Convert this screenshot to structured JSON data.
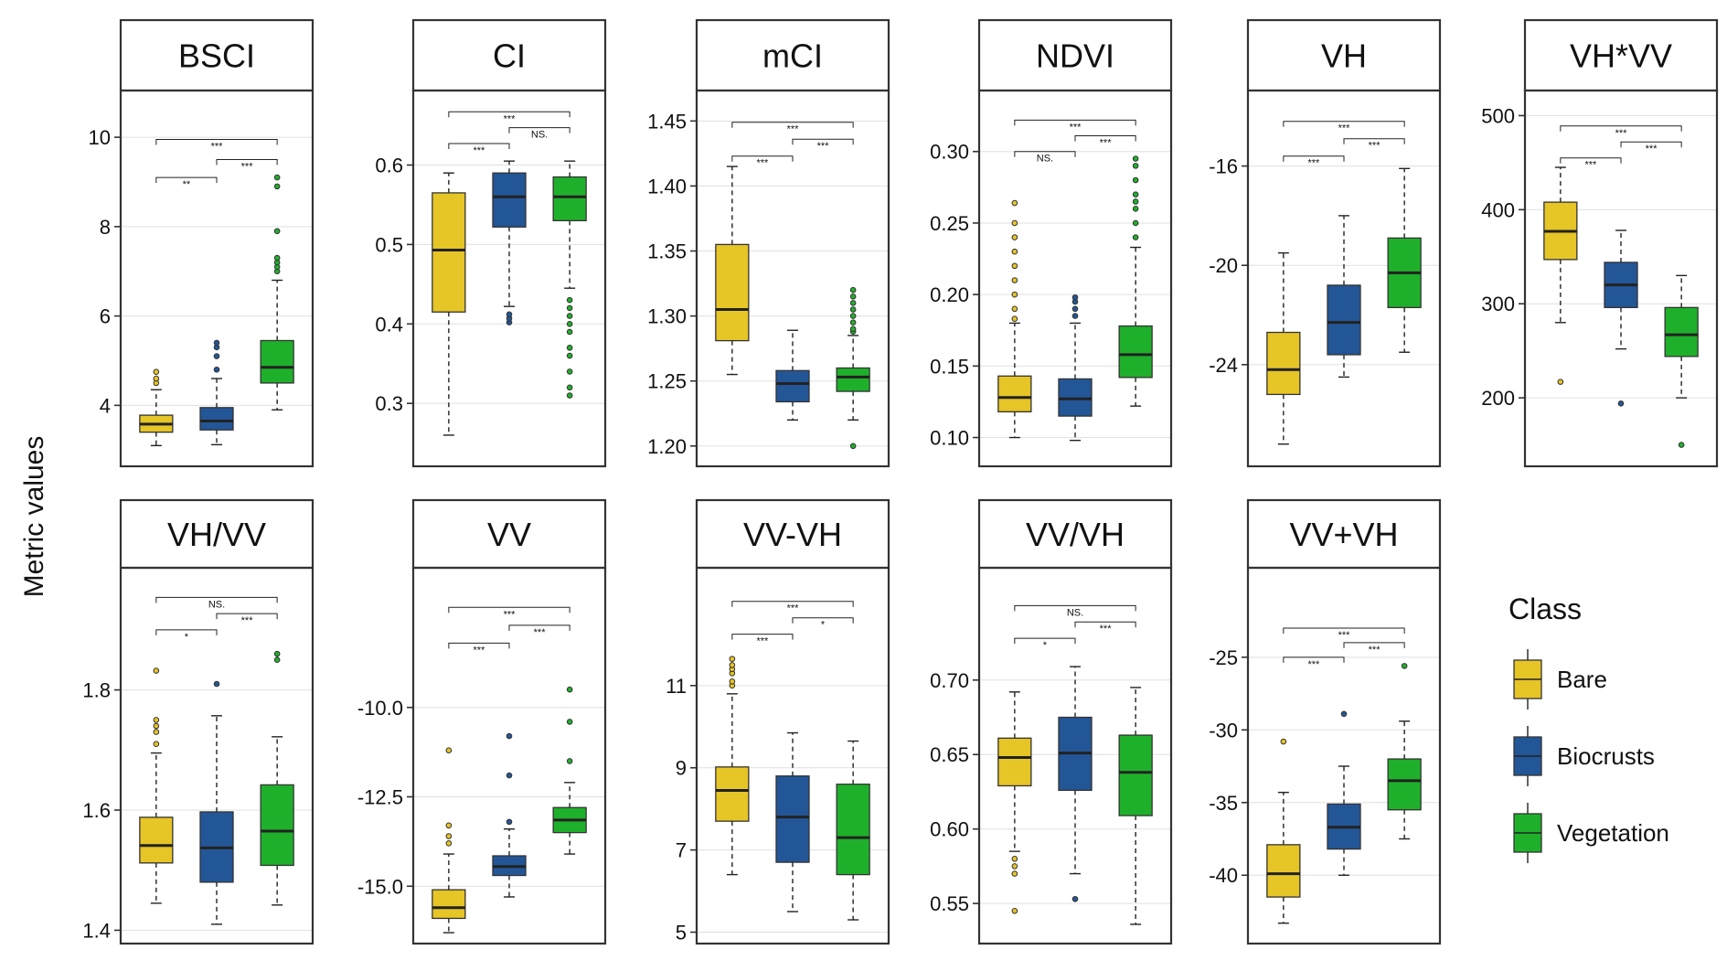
{
  "y_axis_label": "Metric values",
  "legend": {
    "title": "Class",
    "items": [
      {
        "label": "Bare",
        "color": "#e6c526"
      },
      {
        "label": "Biocrusts",
        "color": "#235697"
      },
      {
        "label": "Vegetation",
        "color": "#1fb02b"
      }
    ]
  },
  "colors": {
    "frame": "#333333",
    "strip_bg": "#ffffff",
    "grid": "#e0e0e0",
    "median": "#222222"
  },
  "chart_data": [
    {
      "type": "box",
      "title": "BSCI",
      "ylim": [
        2.8,
        10.8
      ],
      "ticks": [
        4,
        6,
        8,
        10
      ],
      "tick_labels": [
        "4",
        "6",
        "8",
        "10"
      ],
      "series": [
        {
          "name": "Bare",
          "q1": 3.4,
          "median": 3.58,
          "q3": 3.78,
          "whisker_low": 3.1,
          "whisker_high": 4.35,
          "outliers": [
            4.5,
            4.6,
            4.75
          ]
        },
        {
          "name": "Biocrusts",
          "q1": 3.45,
          "median": 3.65,
          "q3": 3.95,
          "whisker_low": 3.12,
          "whisker_high": 4.6,
          "outliers": [
            4.8,
            5.1,
            5.3,
            5.4
          ]
        },
        {
          "name": "Vegetation",
          "q1": 4.5,
          "median": 4.85,
          "q3": 5.45,
          "whisker_low": 3.9,
          "whisker_high": 6.8,
          "outliers": [
            7.0,
            7.1,
            7.2,
            7.3,
            7.9,
            8.9,
            9.1
          ]
        }
      ],
      "comparisons": [
        {
          "label": "**",
          "from": 0,
          "to": 1,
          "y": 9.1
        },
        {
          "label": "***",
          "from": 1,
          "to": 2,
          "y": 9.5
        },
        {
          "label": "***",
          "from": 0,
          "to": 2,
          "y": 9.95
        }
      ]
    },
    {
      "type": "box",
      "title": "CI",
      "ylim": [
        0.23,
        0.68
      ],
      "ticks": [
        0.3,
        0.4,
        0.5,
        0.6
      ],
      "tick_labels": [
        "0.3",
        "0.4",
        "0.5",
        "0.6"
      ],
      "series": [
        {
          "name": "Bare",
          "q1": 0.415,
          "median": 0.493,
          "q3": 0.565,
          "whisker_low": 0.26,
          "whisker_high": 0.59,
          "outliers": []
        },
        {
          "name": "Biocrusts",
          "q1": 0.522,
          "median": 0.56,
          "q3": 0.59,
          "whisker_low": 0.422,
          "whisker_high": 0.605,
          "outliers": [
            0.402,
            0.407,
            0.412
          ]
        },
        {
          "name": "Vegetation",
          "q1": 0.53,
          "median": 0.56,
          "q3": 0.585,
          "whisker_low": 0.445,
          "whisker_high": 0.605,
          "outliers": [
            0.31,
            0.32,
            0.34,
            0.36,
            0.37,
            0.39,
            0.4,
            0.41,
            0.42,
            0.43
          ]
        }
      ],
      "comparisons": [
        {
          "label": "***",
          "from": 0,
          "to": 1,
          "y": 0.627
        },
        {
          "label": "NS.",
          "from": 1,
          "to": 2,
          "y": 0.647
        },
        {
          "label": "***",
          "from": 0,
          "to": 2,
          "y": 0.667
        }
      ]
    },
    {
      "type": "box",
      "title": "mCI",
      "ylim": [
        1.19,
        1.465
      ],
      "ticks": [
        1.2,
        1.25,
        1.3,
        1.35,
        1.4,
        1.45
      ],
      "tick_labels": [
        "1.20",
        "1.25",
        "1.30",
        "1.35",
        "1.40",
        "1.45"
      ],
      "series": [
        {
          "name": "Bare",
          "q1": 1.281,
          "median": 1.305,
          "q3": 1.355,
          "whisker_low": 1.255,
          "whisker_high": 1.415,
          "outliers": []
        },
        {
          "name": "Biocrusts",
          "q1": 1.234,
          "median": 1.248,
          "q3": 1.258,
          "whisker_low": 1.22,
          "whisker_high": 1.289,
          "outliers": []
        },
        {
          "name": "Vegetation",
          "q1": 1.242,
          "median": 1.253,
          "q3": 1.26,
          "whisker_low": 1.22,
          "whisker_high": 1.285,
          "outliers": [
            1.2,
            1.288,
            1.29,
            1.295,
            1.3,
            1.305,
            1.31,
            1.315,
            1.32
          ]
        }
      ],
      "comparisons": [
        {
          "label": "***",
          "from": 0,
          "to": 1,
          "y": 1.423
        },
        {
          "label": "***",
          "from": 1,
          "to": 2,
          "y": 1.436
        },
        {
          "label": "***",
          "from": 0,
          "to": 2,
          "y": 1.449
        }
      ]
    },
    {
      "type": "box",
      "title": "NDVI",
      "ylim": [
        0.085,
        0.335
      ],
      "ticks": [
        0.1,
        0.15,
        0.2,
        0.25,
        0.3
      ],
      "tick_labels": [
        "0.10",
        "0.15",
        "0.20",
        "0.25",
        "0.30"
      ],
      "series": [
        {
          "name": "Bare",
          "q1": 0.118,
          "median": 0.128,
          "q3": 0.143,
          "whisker_low": 0.1,
          "whisker_high": 0.18,
          "outliers": [
            0.183,
            0.19,
            0.2,
            0.21,
            0.22,
            0.23,
            0.24,
            0.25,
            0.264
          ]
        },
        {
          "name": "Biocrusts",
          "q1": 0.115,
          "median": 0.127,
          "q3": 0.141,
          "whisker_low": 0.098,
          "whisker_high": 0.18,
          "outliers": [
            0.185,
            0.19,
            0.195,
            0.198
          ]
        },
        {
          "name": "Vegetation",
          "q1": 0.142,
          "median": 0.158,
          "q3": 0.178,
          "whisker_low": 0.122,
          "whisker_high": 0.233,
          "outliers": [
            0.24,
            0.25,
            0.26,
            0.265,
            0.27,
            0.28,
            0.29,
            0.295
          ]
        }
      ],
      "comparisons": [
        {
          "label": "NS.",
          "from": 0,
          "to": 1,
          "y": 0.3
        },
        {
          "label": "***",
          "from": 1,
          "to": 2,
          "y": 0.311
        },
        {
          "label": "***",
          "from": 0,
          "to": 2,
          "y": 0.322
        }
      ]
    },
    {
      "type": "box",
      "title": "VH",
      "ylim": [
        -27.8,
        -13.4
      ],
      "ticks": [
        -24,
        -20,
        -16
      ],
      "tick_labels": [
        "-24",
        "-20",
        "-16"
      ],
      "series": [
        {
          "name": "Bare",
          "q1": -25.2,
          "median": -24.2,
          "q3": -22.7,
          "whisker_low": -27.2,
          "whisker_high": -19.5,
          "outliers": []
        },
        {
          "name": "Biocrusts",
          "q1": -23.6,
          "median": -22.3,
          "q3": -20.8,
          "whisker_low": -24.5,
          "whisker_high": -18.0,
          "outliers": []
        },
        {
          "name": "Vegetation",
          "q1": -21.7,
          "median": -20.3,
          "q3": -18.9,
          "whisker_low": -23.5,
          "whisker_high": -16.1,
          "outliers": []
        }
      ],
      "comparisons": [
        {
          "label": "***",
          "from": 0,
          "to": 1,
          "y": -15.6
        },
        {
          "label": "***",
          "from": 1,
          "to": 2,
          "y": -14.9
        },
        {
          "label": "***",
          "from": 0,
          "to": 2,
          "y": -14.2
        }
      ]
    },
    {
      "type": "box",
      "title": "VH*VV",
      "ylim": [
        135,
        515
      ],
      "ticks": [
        200,
        300,
        400,
        500
      ],
      "tick_labels": [
        "200",
        "300",
        "400",
        "500"
      ],
      "series": [
        {
          "name": "Bare",
          "q1": 347,
          "median": 377,
          "q3": 408,
          "whisker_low": 280,
          "whisker_high": 445,
          "outliers": [
            217
          ]
        },
        {
          "name": "Biocrusts",
          "q1": 296,
          "median": 320,
          "q3": 344,
          "whisker_low": 252,
          "whisker_high": 378,
          "outliers": [
            194
          ]
        },
        {
          "name": "Vegetation",
          "q1": 244,
          "median": 267,
          "q3": 296,
          "whisker_low": 200,
          "whisker_high": 330,
          "outliers": [
            150
          ]
        }
      ],
      "comparisons": [
        {
          "label": "***",
          "from": 0,
          "to": 1,
          "y": 455
        },
        {
          "label": "***",
          "from": 1,
          "to": 2,
          "y": 472
        },
        {
          "label": "***",
          "from": 0,
          "to": 2,
          "y": 489
        }
      ]
    },
    {
      "type": "box",
      "title": "VH/VV",
      "ylim": [
        1.39,
        1.985
      ],
      "ticks": [
        1.4,
        1.6,
        1.8
      ],
      "tick_labels": [
        "1.4",
        "1.6",
        "1.8"
      ],
      "series": [
        {
          "name": "Bare",
          "q1": 1.512,
          "median": 1.541,
          "q3": 1.588,
          "whisker_low": 1.445,
          "whisker_high": 1.695,
          "outliers": [
            1.71,
            1.73,
            1.74,
            1.75,
            1.832
          ]
        },
        {
          "name": "Biocrusts",
          "q1": 1.48,
          "median": 1.537,
          "q3": 1.597,
          "whisker_low": 1.41,
          "whisker_high": 1.757,
          "outliers": [
            1.81
          ]
        },
        {
          "name": "Vegetation",
          "q1": 1.508,
          "median": 1.565,
          "q3": 1.642,
          "whisker_low": 1.442,
          "whisker_high": 1.722,
          "outliers": [
            1.85,
            1.86
          ]
        }
      ],
      "comparisons": [
        {
          "label": "*",
          "from": 0,
          "to": 1,
          "y": 1.9
        },
        {
          "label": "***",
          "from": 1,
          "to": 2,
          "y": 1.927
        },
        {
          "label": "NS.",
          "from": 0,
          "to": 2,
          "y": 1.954
        }
      ]
    },
    {
      "type": "box",
      "title": "VV",
      "ylim": [
        -16.4,
        -6.4
      ],
      "ticks": [
        -15,
        -12.5,
        -10
      ],
      "tick_labels": [
        "-15.0",
        "-12.5",
        "-10.0"
      ],
      "series": [
        {
          "name": "Bare",
          "q1": -15.9,
          "median": -15.6,
          "q3": -15.1,
          "whisker_low": -16.3,
          "whisker_high": -14.1,
          "outliers": [
            -11.2,
            -13.3,
            -13.6,
            -13.8
          ]
        },
        {
          "name": "Biocrusts",
          "q1": -14.7,
          "median": -14.45,
          "q3": -14.15,
          "whisker_low": -15.3,
          "whisker_high": -13.4,
          "outliers": [
            -10.8,
            -11.9,
            -13.2
          ]
        },
        {
          "name": "Vegetation",
          "q1": -13.5,
          "median": -13.15,
          "q3": -12.8,
          "whisker_low": -14.1,
          "whisker_high": -12.1,
          "outliers": [
            -9.5,
            -10.4,
            -11.5
          ]
        }
      ],
      "comparisons": [
        {
          "label": "***",
          "from": 0,
          "to": 1,
          "y": -8.2
        },
        {
          "label": "***",
          "from": 1,
          "to": 2,
          "y": -7.7
        },
        {
          "label": "***",
          "from": 0,
          "to": 2,
          "y": -7.2
        }
      ]
    },
    {
      "type": "box",
      "title": "VV-VH",
      "ylim": [
        4.9,
        13.6
      ],
      "ticks": [
        5,
        7,
        9,
        11
      ],
      "tick_labels": [
        "5",
        "7",
        "9",
        "11"
      ],
      "series": [
        {
          "name": "Bare",
          "q1": 7.7,
          "median": 8.45,
          "q3": 9.02,
          "whisker_low": 6.4,
          "whisker_high": 10.8,
          "outliers": [
            11.0,
            11.1,
            11.3,
            11.4,
            11.5,
            11.65
          ]
        },
        {
          "name": "Biocrusts",
          "q1": 6.7,
          "median": 7.8,
          "q3": 8.8,
          "whisker_low": 5.5,
          "whisker_high": 9.85,
          "outliers": []
        },
        {
          "name": "Vegetation",
          "q1": 6.4,
          "median": 7.3,
          "q3": 8.6,
          "whisker_low": 5.3,
          "whisker_high": 9.65,
          "outliers": []
        }
      ],
      "comparisons": [
        {
          "label": "***",
          "from": 0,
          "to": 1,
          "y": 12.25
        },
        {
          "label": "*",
          "from": 1,
          "to": 2,
          "y": 12.65
        },
        {
          "label": "***",
          "from": 0,
          "to": 2,
          "y": 13.05
        }
      ]
    },
    {
      "type": "box",
      "title": "VV/VH",
      "ylim": [
        0.528,
        0.768
      ],
      "ticks": [
        0.55,
        0.6,
        0.65,
        0.7
      ],
      "tick_labels": [
        "0.55",
        "0.60",
        "0.65",
        "0.70"
      ],
      "series": [
        {
          "name": "Bare",
          "q1": 0.629,
          "median": 0.648,
          "q3": 0.661,
          "whisker_low": 0.585,
          "whisker_high": 0.692,
          "outliers": [
            0.545,
            0.57,
            0.575,
            0.58
          ]
        },
        {
          "name": "Biocrusts",
          "q1": 0.626,
          "median": 0.651,
          "q3": 0.675,
          "whisker_low": 0.57,
          "whisker_high": 0.709,
          "outliers": [
            0.553
          ]
        },
        {
          "name": "Vegetation",
          "q1": 0.609,
          "median": 0.638,
          "q3": 0.663,
          "whisker_low": 0.536,
          "whisker_high": 0.695,
          "outliers": []
        }
      ],
      "comparisons": [
        {
          "label": "*",
          "from": 0,
          "to": 1,
          "y": 0.728
        },
        {
          "label": "***",
          "from": 1,
          "to": 2,
          "y": 0.739
        },
        {
          "label": "NS.",
          "from": 0,
          "to": 2,
          "y": 0.75
        }
      ]
    },
    {
      "type": "box",
      "title": "VV+VH",
      "ylim": [
        -44.2,
        -19.6
      ],
      "ticks": [
        -40,
        -35,
        -30,
        -25
      ],
      "tick_labels": [
        "-40",
        "-35",
        "-30",
        "-25"
      ],
      "series": [
        {
          "name": "Bare",
          "q1": -41.5,
          "median": -39.9,
          "q3": -37.9,
          "whisker_low": -43.3,
          "whisker_high": -34.3,
          "outliers": [
            -30.8
          ]
        },
        {
          "name": "Biocrusts",
          "q1": -38.2,
          "median": -36.7,
          "q3": -35.1,
          "whisker_low": -40.0,
          "whisker_high": -32.5,
          "outliers": [
            -28.9
          ]
        },
        {
          "name": "Vegetation",
          "q1": -35.5,
          "median": -33.5,
          "q3": -32.0,
          "whisker_low": -37.5,
          "whisker_high": -29.4,
          "outliers": [
            -25.6
          ]
        }
      ],
      "comparisons": [
        {
          "label": "***",
          "from": 0,
          "to": 1,
          "y": -25.0
        },
        {
          "label": "***",
          "from": 1,
          "to": 2,
          "y": -24.0
        },
        {
          "label": "***",
          "from": 0,
          "to": 2,
          "y": -23.0
        }
      ]
    }
  ]
}
